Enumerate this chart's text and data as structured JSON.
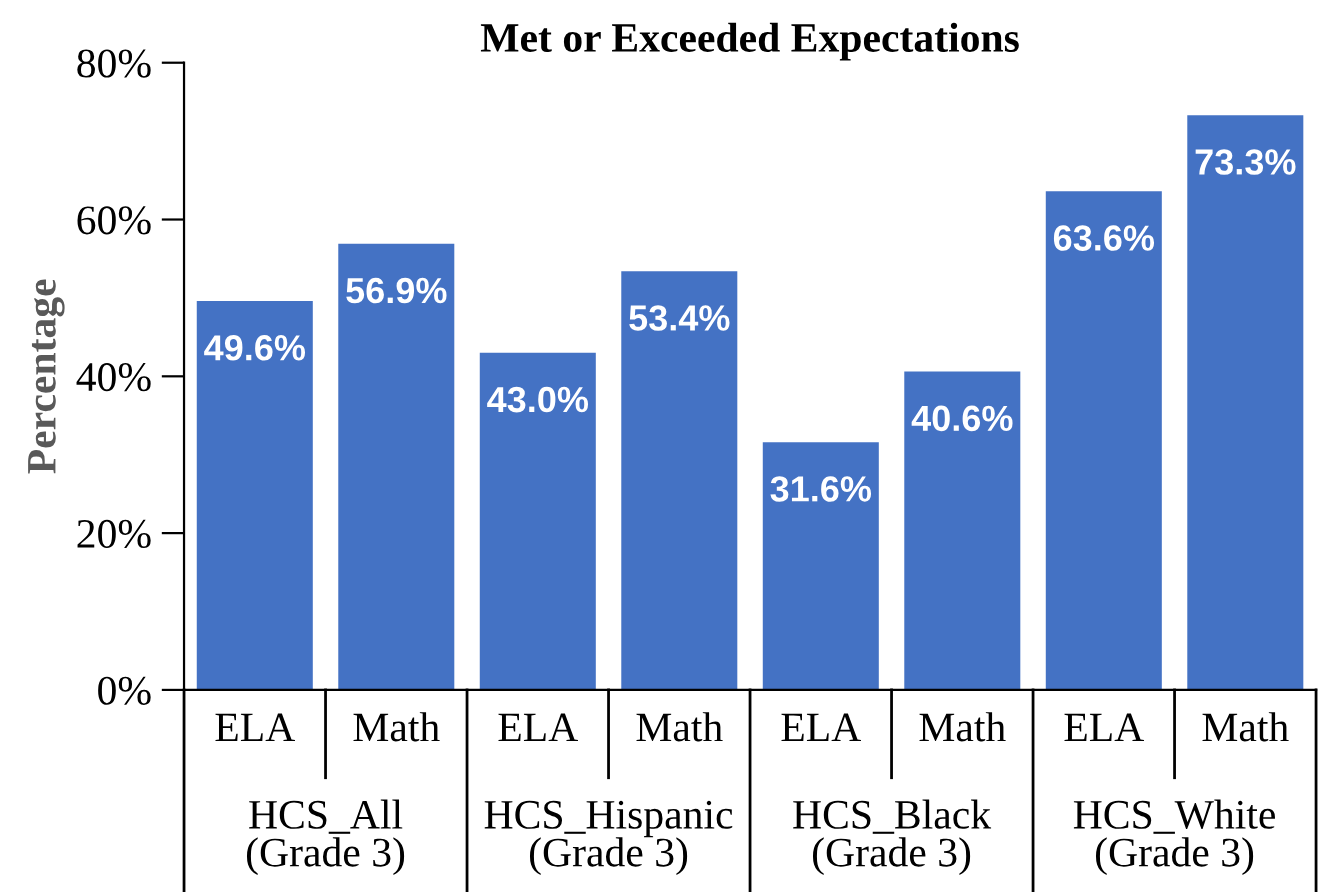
{
  "chart_data": {
    "type": "bar",
    "title": "Met or Exceeded Expectations",
    "ylabel": "Percentage",
    "categories": [
      "ELA",
      "Math",
      "ELA",
      "Math",
      "ELA",
      "Math",
      "ELA",
      "Math"
    ],
    "values": [
      49.6,
      56.9,
      43.0,
      53.4,
      31.6,
      40.6,
      63.6,
      73.3
    ],
    "value_labels": [
      "49.6%",
      "56.9%",
      "43.0%",
      "53.4%",
      "31.6%",
      "40.6%",
      "63.6%",
      "73.3%"
    ],
    "color": "#4472c4",
    "annotations": [
      "HCS_All\n(Grade 3)",
      "HCS_Hispanic\n(Grade 3)",
      "HCS_Black\n(Grade 3)",
      "HCS_White\n(Grade 3)"
    ],
    "ylim": [
      0,
      80
    ],
    "yticks": [
      {
        "value": 0,
        "label": "0%"
      },
      {
        "value": 20,
        "label": "20%"
      },
      {
        "value": 40,
        "label": "40%"
      },
      {
        "value": 60,
        "label": "60%"
      },
      {
        "value": 80,
        "label": "80%"
      }
    ],
    "grid": false,
    "legend": false
  }
}
